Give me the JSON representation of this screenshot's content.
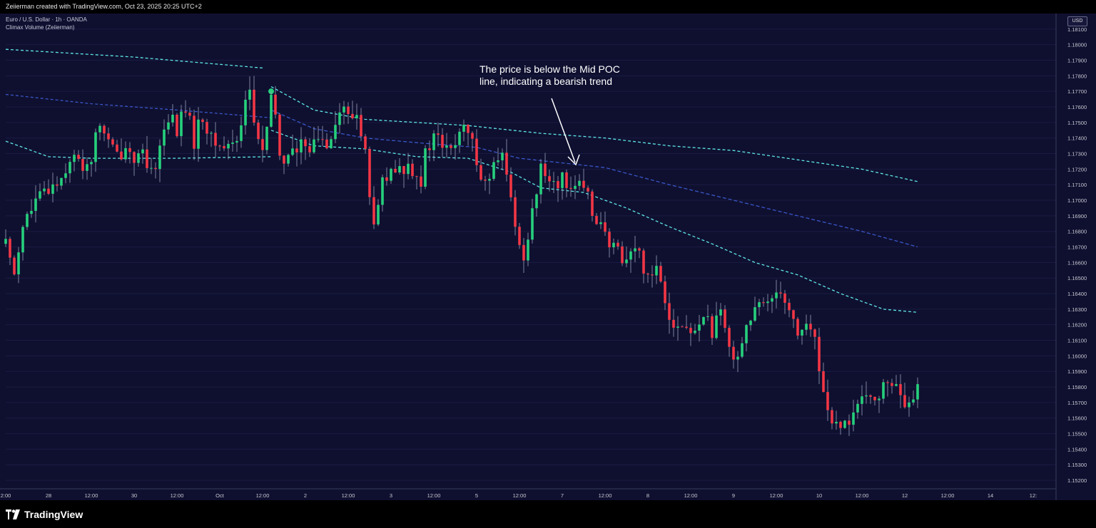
{
  "header": {
    "credit": "Zeiierman created with TradingView.com, Oct 23, 2025 20:25 UTC+2"
  },
  "legend": {
    "symbol": "Euro / U.S. Dollar · 1h · OANDA",
    "indicator": "Climax Volume (Zeiierman)"
  },
  "currency": "USD",
  "annotation": {
    "line1": "The price is below the Mid POC",
    "line2": "line, indicating a bearish trend"
  },
  "footer": {
    "brand": "TradingView"
  },
  "colors": {
    "background": "#0f1030",
    "up": "#26d07c",
    "down": "#f23645",
    "outer_band": "#5ee6e6",
    "mid_band": "#3a56c8",
    "grid": "#1a1b42",
    "axis_text": "#c8c8d0"
  },
  "chart_data": {
    "type": "candlestick",
    "ylim": [
      1.1515,
      1.182
    ],
    "y_ticks": [
      "1.18100",
      "1.18000",
      "1.17900",
      "1.17800",
      "1.17700",
      "1.17600",
      "1.17500",
      "1.17400",
      "1.17300",
      "1.17200",
      "1.17100",
      "1.17000",
      "1.16900",
      "1.16800",
      "1.16700",
      "1.16600",
      "1.16500",
      "1.16400",
      "1.16300",
      "1.16200",
      "1.16100",
      "1.16000",
      "1.15900",
      "1.15800",
      "1.15700",
      "1.15600",
      "1.15500",
      "1.15400",
      "1.15300",
      "1.15200"
    ],
    "x_ticks": [
      {
        "label": "2:00",
        "i": 0
      },
      {
        "label": "28",
        "i": 10
      },
      {
        "label": "12:00",
        "i": 20
      },
      {
        "label": "30",
        "i": 30
      },
      {
        "label": "12:00",
        "i": 40
      },
      {
        "label": "Oct",
        "i": 50
      },
      {
        "label": "12:00",
        "i": 60
      },
      {
        "label": "2",
        "i": 70
      },
      {
        "label": "12:00",
        "i": 80
      },
      {
        "label": "3",
        "i": 90
      },
      {
        "label": "12:00",
        "i": 100
      },
      {
        "label": "5",
        "i": 110
      },
      {
        "label": "12:00",
        "i": 120
      },
      {
        "label": "7",
        "i": 130
      },
      {
        "label": "12:00",
        "i": 140
      },
      {
        "label": "8",
        "i": 150
      },
      {
        "label": "12:00",
        "i": 160
      },
      {
        "label": "9",
        "i": 170
      },
      {
        "label": "12:00",
        "i": 180
      },
      {
        "label": "10",
        "i": 190
      },
      {
        "label": "12:00",
        "i": 200
      },
      {
        "label": "12",
        "i": 210
      },
      {
        "label": "12:00",
        "i": 220
      },
      {
        "label": "14",
        "i": 230
      },
      {
        "label": "12:",
        "i": 240
      }
    ],
    "close_path": [
      [
        0,
        1.1672
      ],
      [
        2,
        1.1655
      ],
      [
        4,
        1.1685
      ],
      [
        7,
        1.1698
      ],
      [
        10,
        1.1708
      ],
      [
        13,
        1.1715
      ],
      [
        15,
        1.1728
      ],
      [
        18,
        1.1722
      ],
      [
        20,
        1.1728
      ],
      [
        22,
        1.175
      ],
      [
        24,
        1.1737
      ],
      [
        26,
        1.1728
      ],
      [
        28,
        1.1735
      ],
      [
        30,
        1.1728
      ],
      [
        32,
        1.1727
      ],
      [
        34,
        1.1715
      ],
      [
        36,
        1.1735
      ],
      [
        38,
        1.1755
      ],
      [
        40,
        1.1745
      ],
      [
        42,
        1.176
      ],
      [
        44,
        1.1738
      ],
      [
        46,
        1.1755
      ],
      [
        48,
        1.1738
      ],
      [
        50,
        1.1735
      ],
      [
        52,
        1.1735
      ],
      [
        54,
        1.174
      ],
      [
        55,
        1.1752
      ],
      [
        56,
        1.1765
      ],
      [
        57,
        1.177
      ],
      [
        58,
        1.175
      ],
      [
        59,
        1.1738
      ],
      [
        60,
        1.1733
      ],
      [
        61,
        1.1745
      ],
      [
        62,
        1.1762
      ],
      [
        63,
        1.1755
      ],
      [
        64,
        1.1728
      ],
      [
        65,
        1.1725
      ],
      [
        66,
        1.1733
      ],
      [
        68,
        1.173
      ],
      [
        70,
        1.1738
      ],
      [
        72,
        1.1735
      ],
      [
        73,
        1.174
      ],
      [
        75,
        1.1738
      ],
      [
        77,
        1.1752
      ],
      [
        79,
        1.176
      ],
      [
        80,
        1.1752
      ],
      [
        82,
        1.1755
      ],
      [
        83,
        1.1745
      ],
      [
        84,
        1.173
      ],
      [
        85,
        1.17
      ],
      [
        86,
        1.1688
      ],
      [
        87,
        1.1692
      ],
      [
        88,
        1.1712
      ],
      [
        90,
        1.1715
      ],
      [
        92,
        1.1718
      ],
      [
        94,
        1.1722
      ],
      [
        96,
        1.172
      ],
      [
        97,
        1.1712
      ],
      [
        98,
        1.1728
      ],
      [
        100,
        1.1742
      ],
      [
        102,
        1.1735
      ],
      [
        104,
        1.173
      ],
      [
        106,
        1.1745
      ],
      [
        108,
        1.1742
      ],
      [
        110,
        1.1728
      ],
      [
        112,
        1.171
      ],
      [
        114,
        1.172
      ],
      [
        116,
        1.1727
      ],
      [
        117,
        1.1715
      ],
      [
        118,
        1.17
      ],
      [
        119,
        1.1688
      ],
      [
        120,
        1.1668
      ],
      [
        121,
        1.1665
      ],
      [
        122,
        1.168
      ],
      [
        123,
        1.1695
      ],
      [
        124,
        1.1705
      ],
      [
        125,
        1.1718
      ],
      [
        127,
        1.1715
      ],
      [
        129,
        1.1712
      ],
      [
        131,
        1.1713
      ],
      [
        133,
        1.171
      ],
      [
        135,
        1.1705
      ],
      [
        137,
        1.1695
      ],
      [
        139,
        1.1685
      ],
      [
        141,
        1.1668
      ],
      [
        143,
        1.1668
      ],
      [
        145,
        1.1662
      ],
      [
        147,
        1.167
      ],
      [
        149,
        1.1658
      ],
      [
        150,
        1.1652
      ],
      [
        152,
        1.1658
      ],
      [
        153,
        1.165
      ],
      [
        155,
        1.1628
      ],
      [
        157,
        1.1618
      ],
      [
        159,
        1.1618
      ],
      [
        161,
        1.1612
      ],
      [
        163,
        1.163
      ],
      [
        165,
        1.1615
      ],
      [
        167,
        1.1625
      ],
      [
        169,
        1.1605
      ],
      [
        171,
        1.1602
      ],
      [
        173,
        1.162
      ],
      [
        175,
        1.1628
      ],
      [
        177,
        1.1632
      ],
      [
        179,
        1.164
      ],
      [
        181,
        1.1645
      ],
      [
        183,
        1.163
      ],
      [
        185,
        1.1615
      ],
      [
        187,
        1.162
      ],
      [
        189,
        1.161
      ],
      [
        190,
        1.159
      ],
      [
        192,
        1.1568
      ],
      [
        193,
        1.1555
      ],
      [
        195,
        1.155
      ],
      [
        197,
        1.156
      ],
      [
        199,
        1.1568
      ],
      [
        201,
        1.157
      ],
      [
        203,
        1.1575
      ],
      [
        205,
        1.1578
      ],
      [
        207,
        1.1585
      ],
      [
        209,
        1.1572
      ],
      [
        211,
        1.1565
      ],
      [
        213,
        1.1578
      ]
    ],
    "poc_upper": [
      [
        0,
        1.1797
      ],
      [
        30,
        1.1792
      ],
      [
        60,
        1.1785
      ]
    ],
    "poc_mid_left": [
      [
        0,
        1.1768
      ],
      [
        20,
        1.1762
      ],
      [
        40,
        1.1758
      ],
      [
        62,
        1.1753
      ]
    ],
    "poc_lower_left": [
      [
        0,
        1.1738
      ],
      [
        10,
        1.1728
      ],
      [
        20,
        1.1727
      ],
      [
        40,
        1.1727
      ],
      [
        62,
        1.1728
      ]
    ],
    "poc_upper2": [
      [
        62,
        1.1773
      ],
      [
        72,
        1.1758
      ],
      [
        84,
        1.1752
      ],
      [
        96,
        1.175
      ],
      [
        108,
        1.1748
      ],
      [
        125,
        1.1743
      ],
      [
        140,
        1.174
      ],
      [
        155,
        1.1735
      ],
      [
        170,
        1.1732
      ],
      [
        185,
        1.1726
      ],
      [
        200,
        1.172
      ],
      [
        213,
        1.1712
      ]
    ],
    "poc_mid2": [
      [
        62,
        1.1758
      ],
      [
        72,
        1.1746
      ],
      [
        84,
        1.174
      ],
      [
        96,
        1.1737
      ],
      [
        110,
        1.1734
      ],
      [
        120,
        1.1727
      ],
      [
        140,
        1.1721
      ],
      [
        155,
        1.171
      ],
      [
        170,
        1.17
      ],
      [
        185,
        1.169
      ],
      [
        200,
        1.168
      ],
      [
        213,
        1.167
      ]
    ],
    "poc_lower2": [
      [
        62,
        1.1745
      ],
      [
        72,
        1.1735
      ],
      [
        84,
        1.1733
      ],
      [
        96,
        1.1728
      ],
      [
        108,
        1.1727
      ],
      [
        118,
        1.1718
      ],
      [
        125,
        1.1708
      ],
      [
        135,
        1.1705
      ],
      [
        145,
        1.1695
      ],
      [
        155,
        1.1683
      ],
      [
        165,
        1.1672
      ],
      [
        175,
        1.166
      ],
      [
        185,
        1.1652
      ],
      [
        195,
        1.164
      ],
      [
        205,
        1.163
      ],
      [
        213,
        1.1628
      ]
    ],
    "climax_marker": {
      "i": 62,
      "price": 1.177
    }
  }
}
